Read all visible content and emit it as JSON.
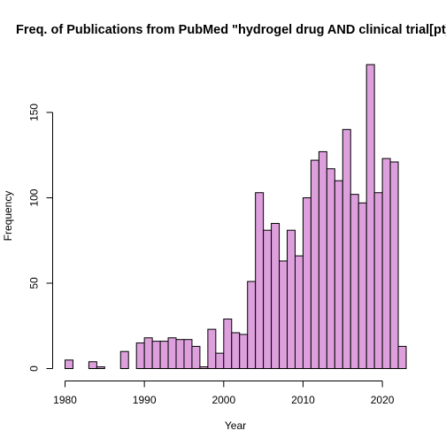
{
  "chart_data": {
    "type": "bar",
    "title": "Freq. of Publications from PubMed \"hydrogel drug AND clinical trial[pt]\"",
    "xlabel": "Year",
    "ylabel": "Frequency",
    "bar_color": "#dda0dd",
    "border_color": "#000000",
    "bin_width": 1,
    "x_start": 1980,
    "xlim": [
      1980,
      2023
    ],
    "ylim": [
      0,
      178
    ],
    "x_ticks": [
      1980,
      1990,
      2000,
      2010,
      2020
    ],
    "y_ticks": [
      0,
      50,
      100,
      150
    ],
    "grid": false,
    "legend": "none",
    "values": [
      5,
      0,
      0,
      4,
      1,
      0,
      0,
      10,
      0,
      15,
      18,
      16,
      16,
      18,
      17,
      17,
      13,
      1,
      23,
      9,
      29,
      21,
      20,
      51,
      103,
      81,
      85,
      63,
      81,
      66,
      100,
      122,
      127,
      117,
      110,
      140,
      102,
      97,
      178,
      103,
      123,
      121,
      13
    ]
  }
}
